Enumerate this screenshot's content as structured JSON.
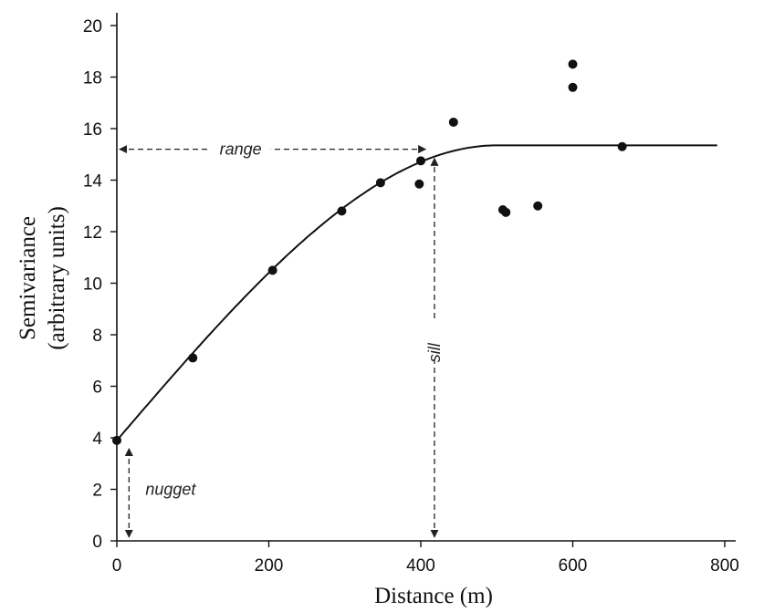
{
  "chart_data": {
    "type": "scatter",
    "xlabel": "Distance (m)",
    "ylabel_lines": [
      "Semivariance",
      "(arbitrary units)"
    ],
    "xlim": [
      0,
      800
    ],
    "ylim": [
      0,
      20
    ],
    "x_ticks": [
      0,
      200,
      400,
      600,
      800
    ],
    "y_ticks": [
      0,
      2,
      4,
      6,
      8,
      10,
      12,
      14,
      16,
      18,
      20
    ],
    "grid": false,
    "points": [
      {
        "x": 0,
        "y": 3.9
      },
      {
        "x": 100,
        "y": 7.1
      },
      {
        "x": 205,
        "y": 10.5
      },
      {
        "x": 296,
        "y": 12.8
      },
      {
        "x": 347,
        "y": 13.9
      },
      {
        "x": 398,
        "y": 13.85
      },
      {
        "x": 400,
        "y": 14.75
      },
      {
        "x": 443,
        "y": 16.25
      },
      {
        "x": 508,
        "y": 12.85
      },
      {
        "x": 512,
        "y": 12.75
      },
      {
        "x": 554,
        "y": 13.0
      },
      {
        "x": 600,
        "y": 18.5
      },
      {
        "x": 600,
        "y": 17.6
      },
      {
        "x": 665,
        "y": 15.3
      }
    ],
    "model_curve": {
      "nugget": 3.9,
      "sill": 15.35,
      "range": 500,
      "x_end": 790
    },
    "annotations": {
      "range": {
        "label": "range",
        "x_from": 0,
        "x_to": 410,
        "y": 15.2
      },
      "sill": {
        "label": "sill",
        "x": 418,
        "y_from": 0,
        "y_to": 14.95
      },
      "nugget": {
        "label": "nugget",
        "x": 16,
        "y_from": 0,
        "y_to": 3.9
      }
    }
  }
}
